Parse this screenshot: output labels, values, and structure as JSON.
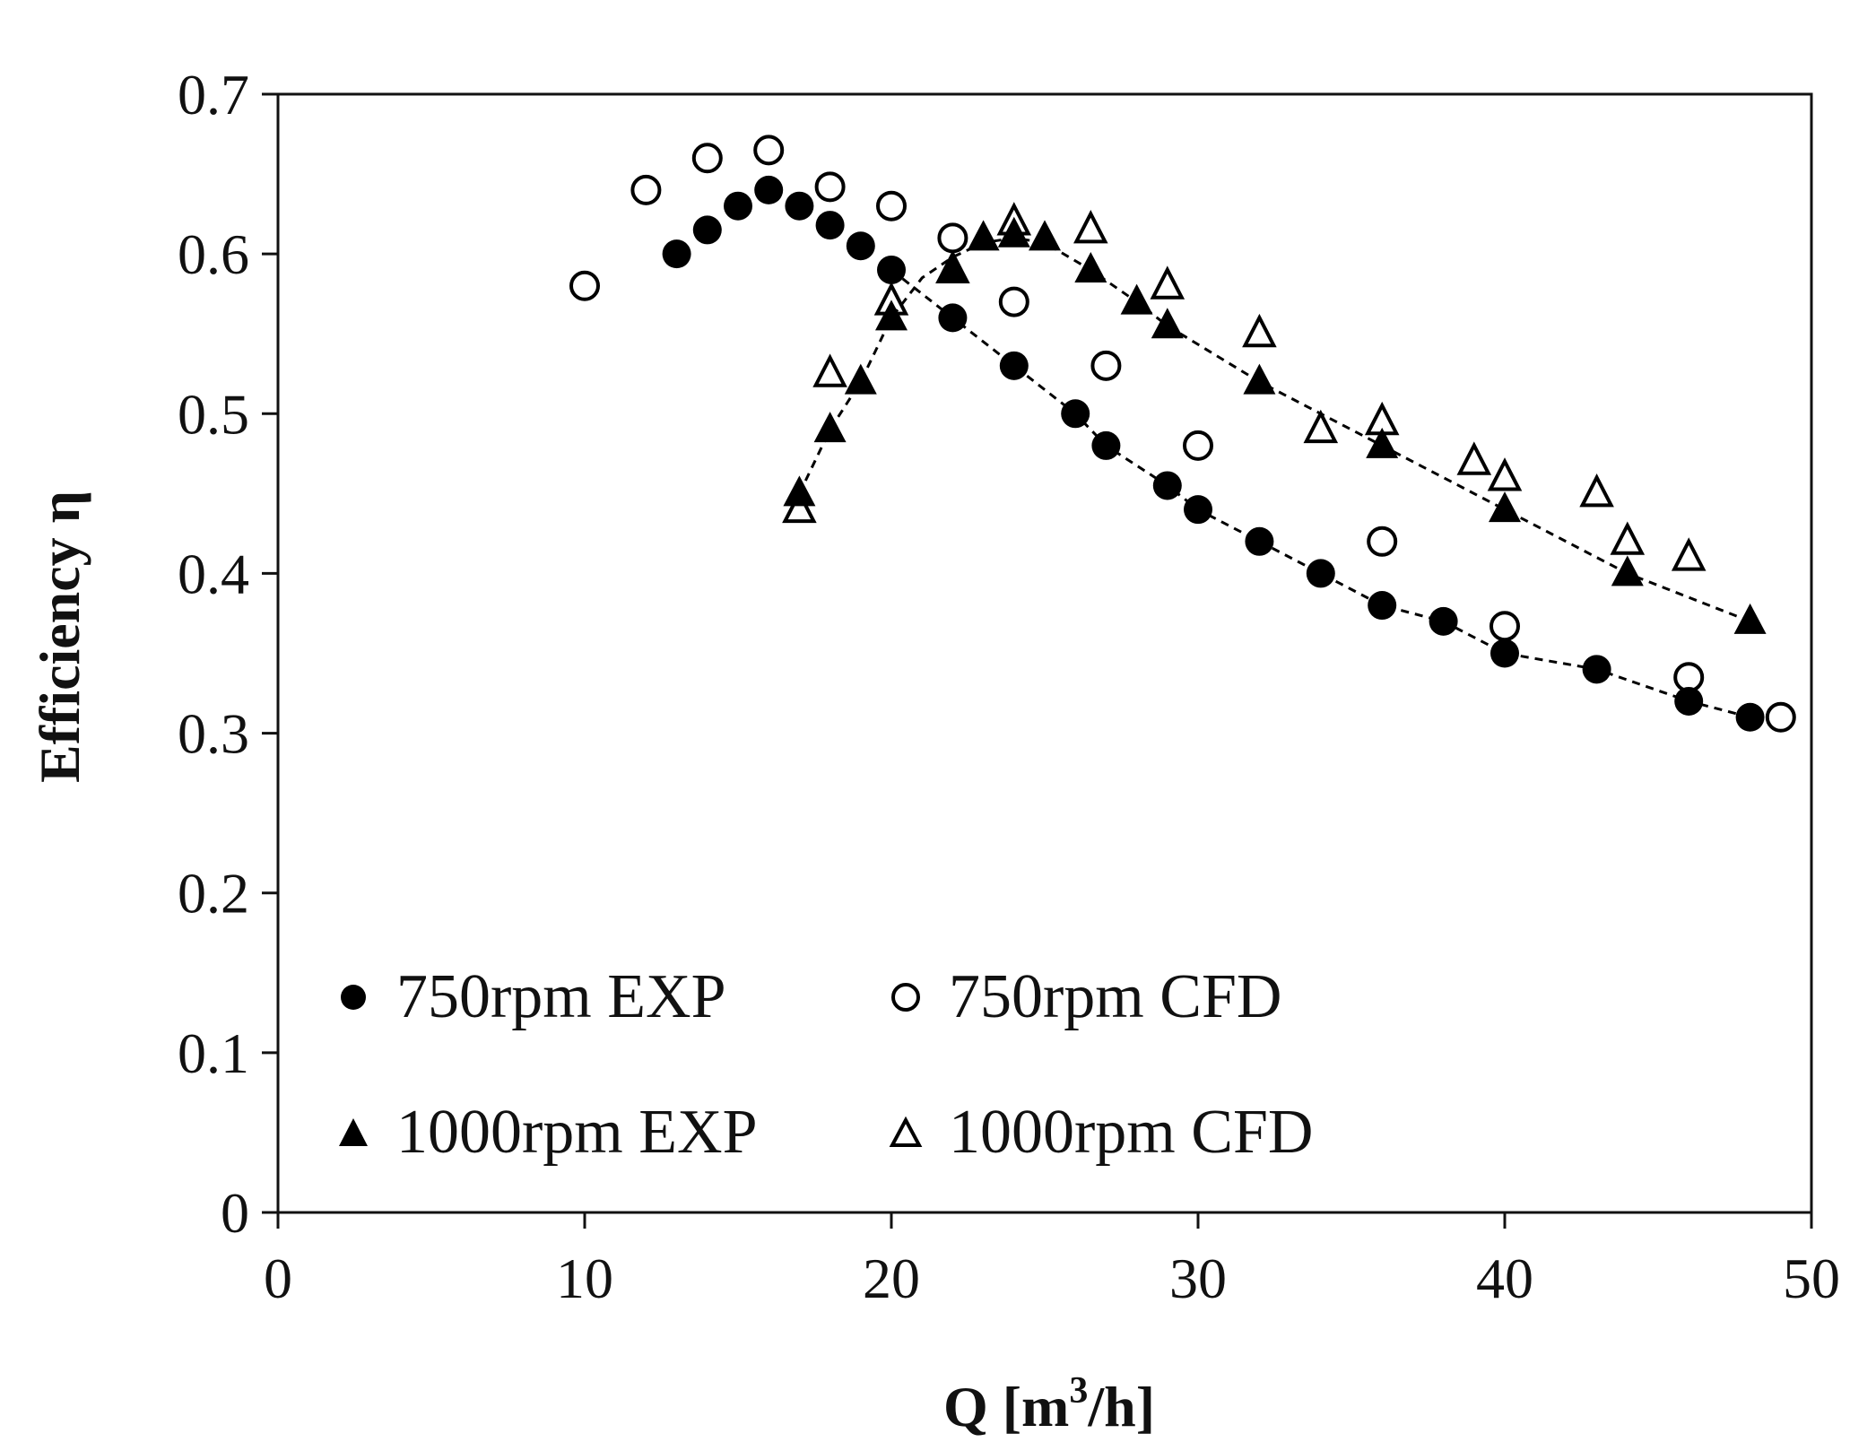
{
  "chart_data": {
    "type": "scatter",
    "title": "",
    "xlabel": "Q [m",
    "xlabel_sup": "3",
    "xlabel_tail": "/h]",
    "ylabel": "Efficiency η",
    "xlim": [
      0,
      50
    ],
    "ylim": [
      0,
      0.7
    ],
    "xticks": [
      0,
      10,
      20,
      30,
      40,
      50
    ],
    "yticks": [
      0,
      0.1,
      0.2,
      0.3,
      0.4,
      0.5,
      0.6,
      0.7
    ],
    "xtick_labels": [
      "0",
      "10",
      "20",
      "30",
      "40",
      "50"
    ],
    "ytick_labels": [
      "0",
      "0.1",
      "0.2",
      "0.3",
      "0.4",
      "0.5",
      "0.6",
      "0.7"
    ],
    "grid": false,
    "legend_position": "bottom-left",
    "series": [
      {
        "name": "750rpm EXP",
        "marker": "circle",
        "filled": true,
        "x": [
          13,
          14,
          15,
          16,
          17,
          18,
          19,
          20,
          22,
          24,
          26,
          27,
          29,
          30,
          32,
          34,
          36,
          38,
          40,
          43,
          46,
          48
        ],
        "y": [
          0.6,
          0.615,
          0.63,
          0.64,
          0.63,
          0.618,
          0.605,
          0.59,
          0.56,
          0.53,
          0.5,
          0.48,
          0.455,
          0.44,
          0.42,
          0.4,
          0.38,
          0.37,
          0.35,
          0.34,
          0.32,
          0.31
        ]
      },
      {
        "name": "750rpm CFD",
        "marker": "circle",
        "filled": false,
        "x": [
          10,
          12,
          14,
          16,
          18,
          20,
          22,
          24,
          27,
          30,
          36,
          40,
          46,
          49
        ],
        "y": [
          0.58,
          0.64,
          0.66,
          0.665,
          0.642,
          0.63,
          0.61,
          0.57,
          0.53,
          0.48,
          0.42,
          0.367,
          0.335,
          0.31
        ]
      },
      {
        "name": "1000rpm EXP",
        "marker": "triangle",
        "filled": true,
        "x": [
          17,
          18,
          19,
          20,
          22,
          23,
          24,
          25,
          26.5,
          28,
          29,
          32,
          36,
          40,
          44,
          48
        ],
        "y": [
          0.45,
          0.49,
          0.52,
          0.56,
          0.59,
          0.61,
          0.612,
          0.61,
          0.59,
          0.57,
          0.555,
          0.52,
          0.48,
          0.44,
          0.4,
          0.37
        ]
      },
      {
        "name": "1000rpm CFD",
        "marker": "triangle",
        "filled": false,
        "x": [
          17,
          18,
          20,
          22,
          24,
          26.5,
          29,
          32,
          34,
          36,
          39,
          40,
          43,
          44,
          46
        ],
        "y": [
          0.44,
          0.525,
          0.57,
          0.59,
          0.62,
          0.615,
          0.58,
          0.55,
          0.49,
          0.495,
          0.47,
          0.46,
          0.45,
          0.42,
          0.41
        ]
      }
    ],
    "trendlines": [
      {
        "name": "750rpm EXP trend",
        "style": "dashed",
        "x": [
          20,
          22,
          24,
          26,
          27,
          29,
          30,
          32,
          34,
          36,
          38,
          40,
          43,
          46,
          48
        ],
        "y": [
          0.59,
          0.56,
          0.53,
          0.5,
          0.48,
          0.455,
          0.44,
          0.42,
          0.4,
          0.38,
          0.37,
          0.35,
          0.34,
          0.32,
          0.31
        ]
      },
      {
        "name": "1000rpm EXP trend",
        "style": "dashed",
        "x": [
          17,
          18,
          19,
          20,
          21,
          22,
          23,
          24,
          25,
          26.5,
          28,
          29,
          32,
          36,
          40,
          44,
          48
        ],
        "y": [
          0.45,
          0.49,
          0.52,
          0.56,
          0.585,
          0.598,
          0.607,
          0.61,
          0.607,
          0.59,
          0.57,
          0.555,
          0.52,
          0.48,
          0.44,
          0.4,
          0.37
        ]
      }
    ]
  },
  "colors": {
    "axis": "#111111",
    "marker": "#000000",
    "background": "#ffffff"
  }
}
